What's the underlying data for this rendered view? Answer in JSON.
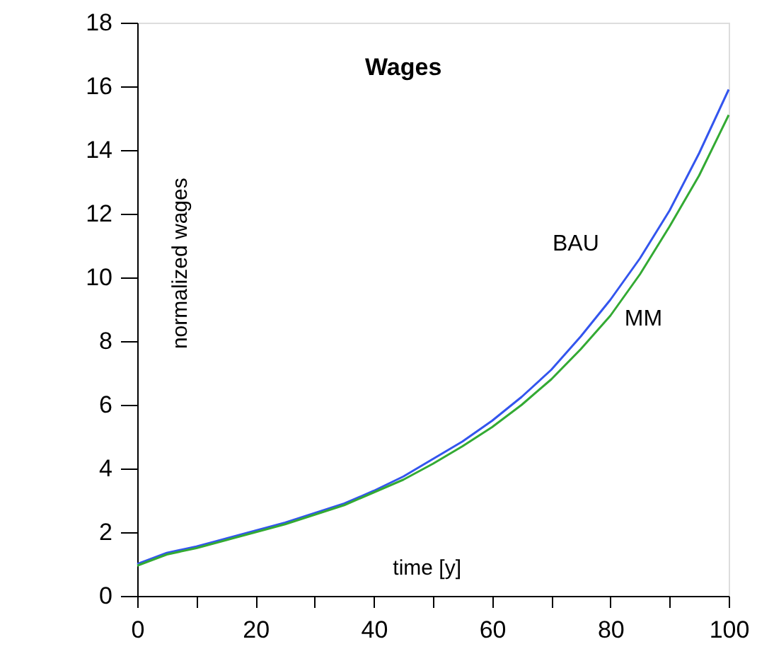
{
  "chart_data": {
    "type": "line",
    "title": "Wages",
    "xlabel": "time [y]",
    "ylabel": "normalized wages",
    "x": [
      0,
      5,
      10,
      15,
      20,
      25,
      30,
      35,
      40,
      45,
      50,
      55,
      60,
      65,
      70,
      75,
      80,
      85,
      90,
      95,
      100
    ],
    "series": [
      {
        "name": "BAU",
        "color": "#3355ee",
        "values": [
          1.0,
          1.35,
          1.55,
          1.8,
          2.05,
          2.3,
          2.6,
          2.9,
          3.3,
          3.75,
          4.3,
          4.85,
          5.5,
          6.25,
          7.1,
          8.15,
          9.3,
          10.6,
          12.1,
          13.9,
          15.9
        ]
      },
      {
        "name": "MM",
        "color": "#33aa33",
        "values": [
          0.95,
          1.3,
          1.5,
          1.75,
          2.0,
          2.25,
          2.55,
          2.85,
          3.25,
          3.65,
          4.15,
          4.7,
          5.3,
          6.0,
          6.8,
          7.75,
          8.8,
          10.1,
          11.6,
          13.2,
          15.1
        ]
      }
    ],
    "xlim": [
      0,
      100
    ],
    "ylim": [
      0,
      18
    ],
    "xticks": [
      0,
      {
        "value": 10,
        "label": null
      },
      20,
      {
        "value": 30,
        "label": null
      },
      40,
      {
        "value": 50,
        "label": null
      },
      60,
      {
        "value": 70,
        "label": null
      },
      80,
      {
        "value": 90,
        "label": null
      },
      100
    ],
    "yticks": [
      0,
      2,
      4,
      6,
      8,
      10,
      12,
      14,
      16,
      18
    ],
    "grid": false,
    "marker": "none",
    "line_style": "solid"
  }
}
